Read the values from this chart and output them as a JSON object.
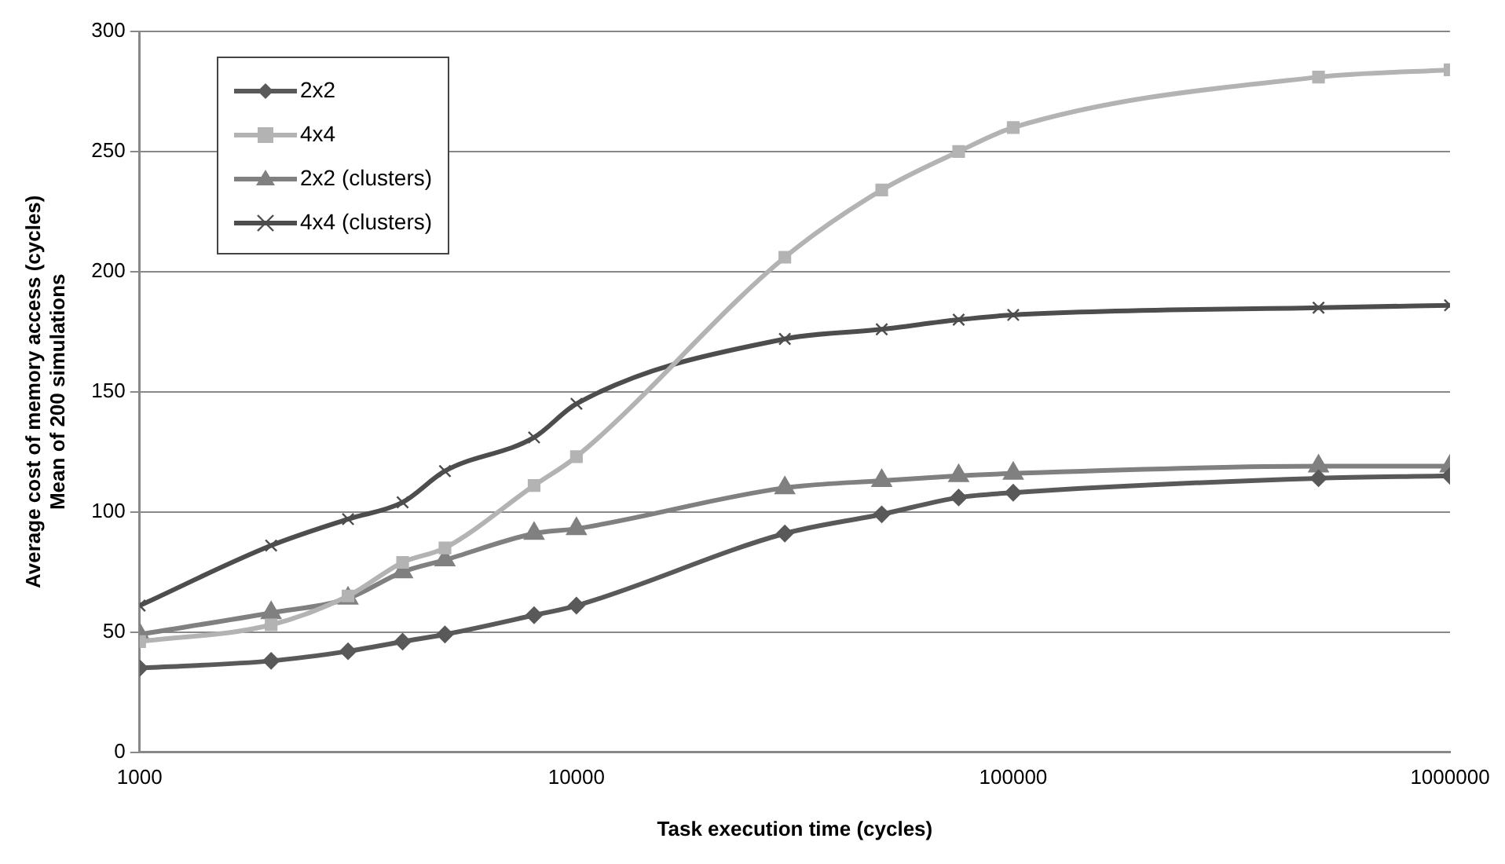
{
  "chart_data": {
    "type": "line",
    "xlabel": "Task execution time (cycles)",
    "ylabel": "Average cost of memory access (cycles)\nMean of 200 simulations",
    "x": [
      1000,
      2000,
      3000,
      4000,
      5000,
      8000,
      10000,
      30000,
      50000,
      75000,
      100000,
      500000,
      1000000
    ],
    "series": [
      {
        "name": "2x2",
        "color": "#595959",
        "marker": "diamond",
        "values": [
          35,
          38,
          42,
          46,
          49,
          57,
          61,
          91,
          99,
          106,
          108,
          114,
          115
        ]
      },
      {
        "name": "4x4",
        "color": "#b3b3b3",
        "marker": "square",
        "values": [
          46,
          53,
          65,
          79,
          85,
          111,
          123,
          206,
          234,
          250,
          260,
          281,
          284
        ]
      },
      {
        "name": "2x2 (clusters)",
        "color": "#808080",
        "marker": "triangle",
        "values": [
          49,
          58,
          64,
          75,
          80,
          91,
          93,
          110,
          113,
          115,
          116,
          119,
          119
        ]
      },
      {
        "name": "4x4 (clusters)",
        "color": "#4d4d4d",
        "marker": "cross",
        "values": [
          61,
          86,
          97,
          104,
          117,
          131,
          145,
          172,
          176,
          180,
          182,
          185,
          186
        ]
      }
    ],
    "log": "x",
    "xlim": [
      1000,
      1000000
    ],
    "xticks": [
      1000,
      10000,
      100000,
      1000000
    ],
    "ylim": [
      0,
      300
    ],
    "yticks": [
      0,
      50,
      100,
      150,
      200,
      250,
      300
    ],
    "grid": "y",
    "legend": "top left"
  }
}
